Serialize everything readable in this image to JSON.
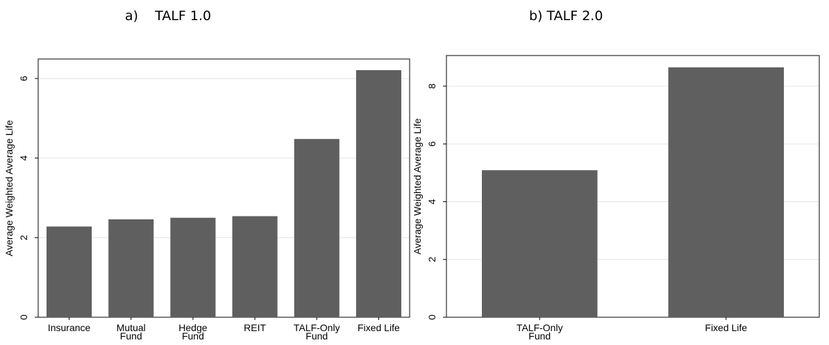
{
  "chart_data": [
    {
      "type": "bar",
      "title": "a)    TALF 1.0",
      "y_label": "Average Weighted Average Life",
      "categories": [
        "Insurance",
        "Mutual\nFund",
        "Hedge\nFund",
        "REIT",
        "TALF-Only\nFund",
        "Fixed Life"
      ],
      "values": [
        2.28,
        2.46,
        2.5,
        2.54,
        4.48,
        6.21
      ],
      "color": "#5f5f5f",
      "ylim": [
        0,
        6.49
      ],
      "yticks": [
        0,
        2,
        4,
        6
      ],
      "grid": true
    },
    {
      "type": "bar",
      "title": "b) TALF 2.0",
      "y_label": "Average Weighted Average Life",
      "categories": [
        "TALF-Only\nFund",
        "Fixed Life"
      ],
      "values": [
        5.09,
        8.65
      ],
      "color": "#5f5f5f",
      "ylim": [
        0,
        9.06
      ],
      "yticks": [
        0,
        2,
        4,
        6,
        8
      ],
      "grid": true
    }
  ]
}
